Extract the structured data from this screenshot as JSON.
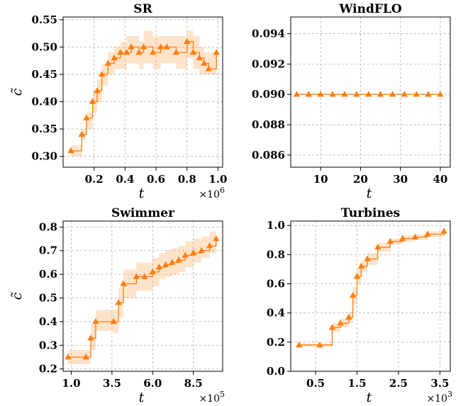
{
  "chart_data": [
    {
      "type": "line",
      "title": "SR",
      "xlabel": "t",
      "ylabel": "c̃",
      "x_multiplier": "×10",
      "x_multiplier_exp": "6",
      "xlim": [
        0.0,
        1.03
      ],
      "ylim": [
        0.28,
        0.555
      ],
      "xticks": [
        0.2,
        0.4,
        0.6,
        0.8,
        1.0
      ],
      "xtick_labels": [
        "0.2",
        "0.4",
        "0.6",
        "0.8",
        "1.0"
      ],
      "yticks": [
        0.3,
        0.35,
        0.4,
        0.45,
        0.5,
        0.55
      ],
      "ytick_labels": [
        "0.30",
        "0.35",
        "0.40",
        "0.45",
        "0.50",
        "0.55"
      ],
      "color": "#ff7f0e",
      "series": [
        {
          "x": [
            0.05,
            0.12,
            0.15,
            0.19,
            0.22,
            0.25,
            0.29,
            0.33,
            0.37,
            0.41,
            0.44,
            0.49,
            0.52,
            0.58,
            0.63,
            0.67,
            0.73,
            0.8,
            0.84,
            0.88,
            0.91,
            0.94,
            0.99
          ],
          "y": [
            0.31,
            0.34,
            0.37,
            0.4,
            0.42,
            0.45,
            0.47,
            0.48,
            0.49,
            0.49,
            0.5,
            0.49,
            0.5,
            0.49,
            0.5,
            0.5,
            0.49,
            0.51,
            0.49,
            0.48,
            0.47,
            0.46,
            0.49
          ],
          "lower": [
            0.3,
            0.33,
            0.35,
            0.38,
            0.4,
            0.43,
            0.45,
            0.46,
            0.46,
            0.47,
            0.47,
            0.46,
            0.47,
            0.46,
            0.47,
            0.47,
            0.46,
            0.48,
            0.46,
            0.45,
            0.45,
            0.45,
            0.46
          ],
          "upper": [
            0.32,
            0.35,
            0.38,
            0.42,
            0.44,
            0.47,
            0.49,
            0.5,
            0.51,
            0.52,
            0.52,
            0.51,
            0.53,
            0.52,
            0.52,
            0.52,
            0.52,
            0.53,
            0.52,
            0.5,
            0.49,
            0.49,
            0.51
          ]
        }
      ]
    },
    {
      "type": "line",
      "title": "WindFLO",
      "xlabel": "t",
      "ylabel": "",
      "x_multiplier": "",
      "x_multiplier_exp": "",
      "xlim": [
        2.5,
        42.5
      ],
      "ylim": [
        0.0852,
        0.0951
      ],
      "xticks": [
        10,
        20,
        30,
        40
      ],
      "xtick_labels": [
        "10",
        "20",
        "30",
        "40"
      ],
      "yticks": [
        0.086,
        0.088,
        0.09,
        0.092,
        0.094
      ],
      "ytick_labels": [
        "0.086",
        "0.088",
        "0.090",
        "0.092",
        "0.094"
      ],
      "color": "#ff7f0e",
      "series": [
        {
          "x": [
            4,
            7,
            10,
            13,
            16,
            19,
            22,
            25,
            28,
            31,
            34,
            37,
            40
          ],
          "y": [
            0.09,
            0.09,
            0.09,
            0.09,
            0.09,
            0.09,
            0.09,
            0.09,
            0.09,
            0.09,
            0.09,
            0.09,
            0.09
          ],
          "lower": [
            0.09,
            0.09,
            0.09,
            0.09,
            0.09,
            0.09,
            0.09,
            0.09,
            0.09,
            0.09,
            0.09,
            0.09,
            0.09
          ],
          "upper": [
            0.09,
            0.09,
            0.09,
            0.09,
            0.09,
            0.09,
            0.09,
            0.09,
            0.09,
            0.09,
            0.09,
            0.09,
            0.09
          ]
        }
      ]
    },
    {
      "type": "line",
      "title": "Swimmer",
      "xlabel": "t",
      "ylabel": "c̃",
      "x_multiplier": "×10",
      "x_multiplier_exp": "5",
      "xlim": [
        0.5,
        10.3
      ],
      "ylim": [
        0.19,
        0.825
      ],
      "xticks": [
        1.0,
        3.5,
        6.0,
        8.5
      ],
      "xtick_labels": [
        "1.0",
        "3.5",
        "6.0",
        "8.5"
      ],
      "yticks": [
        0.2,
        0.3,
        0.4,
        0.5,
        0.6,
        0.7,
        0.8
      ],
      "ytick_labels": [
        "0.2",
        "0.3",
        "0.4",
        "0.5",
        "0.6",
        "0.7",
        "0.8"
      ],
      "color": "#ff7f0e",
      "series": [
        {
          "x": [
            0.8,
            1.9,
            2.2,
            2.5,
            3.6,
            3.9,
            4.2,
            5.0,
            5.5,
            6.0,
            6.4,
            6.8,
            7.2,
            7.6,
            8.0,
            8.5,
            9.0,
            9.5,
            9.9
          ],
          "y": [
            0.25,
            0.25,
            0.33,
            0.4,
            0.4,
            0.48,
            0.56,
            0.59,
            0.59,
            0.61,
            0.63,
            0.64,
            0.65,
            0.66,
            0.68,
            0.69,
            0.7,
            0.72,
            0.75
          ],
          "lower": [
            0.22,
            0.22,
            0.28,
            0.36,
            0.35,
            0.42,
            0.5,
            0.53,
            0.53,
            0.55,
            0.58,
            0.59,
            0.6,
            0.61,
            0.63,
            0.65,
            0.67,
            0.69,
            0.72
          ],
          "upper": [
            0.28,
            0.28,
            0.39,
            0.45,
            0.45,
            0.54,
            0.62,
            0.65,
            0.65,
            0.67,
            0.69,
            0.7,
            0.71,
            0.72,
            0.74,
            0.75,
            0.76,
            0.78,
            0.8
          ]
        }
      ]
    },
    {
      "type": "line",
      "title": "Turbines",
      "xlabel": "t",
      "ylabel": "",
      "x_multiplier": "×10",
      "x_multiplier_exp": "3",
      "xlim": [
        -0.1,
        3.75
      ],
      "ylim": [
        0.0,
        1.03
      ],
      "xticks": [
        0.5,
        1.5,
        2.5,
        3.5
      ],
      "xtick_labels": [
        "0.5",
        "1.5",
        "2.5",
        "3.5"
      ],
      "yticks": [
        0.0,
        0.2,
        0.4,
        0.6,
        0.8,
        1.0
      ],
      "ytick_labels": [
        "0.0",
        "0.2",
        "0.4",
        "0.6",
        "0.8",
        "1.0"
      ],
      "color": "#ff7f0e",
      "series": [
        {
          "x": [
            0.1,
            0.6,
            0.9,
            1.1,
            1.3,
            1.4,
            1.5,
            1.6,
            1.75,
            2.0,
            2.3,
            2.6,
            2.9,
            3.2,
            3.6
          ],
          "y": [
            0.18,
            0.18,
            0.3,
            0.33,
            0.37,
            0.52,
            0.65,
            0.72,
            0.77,
            0.85,
            0.89,
            0.91,
            0.92,
            0.94,
            0.96
          ],
          "lower": [
            0.17,
            0.17,
            0.27,
            0.3,
            0.33,
            0.46,
            0.6,
            0.68,
            0.73,
            0.82,
            0.87,
            0.89,
            0.9,
            0.92,
            0.95
          ],
          "upper": [
            0.19,
            0.19,
            0.33,
            0.36,
            0.41,
            0.58,
            0.7,
            0.76,
            0.81,
            0.88,
            0.91,
            0.93,
            0.94,
            0.96,
            0.97
          ]
        }
      ]
    }
  ]
}
